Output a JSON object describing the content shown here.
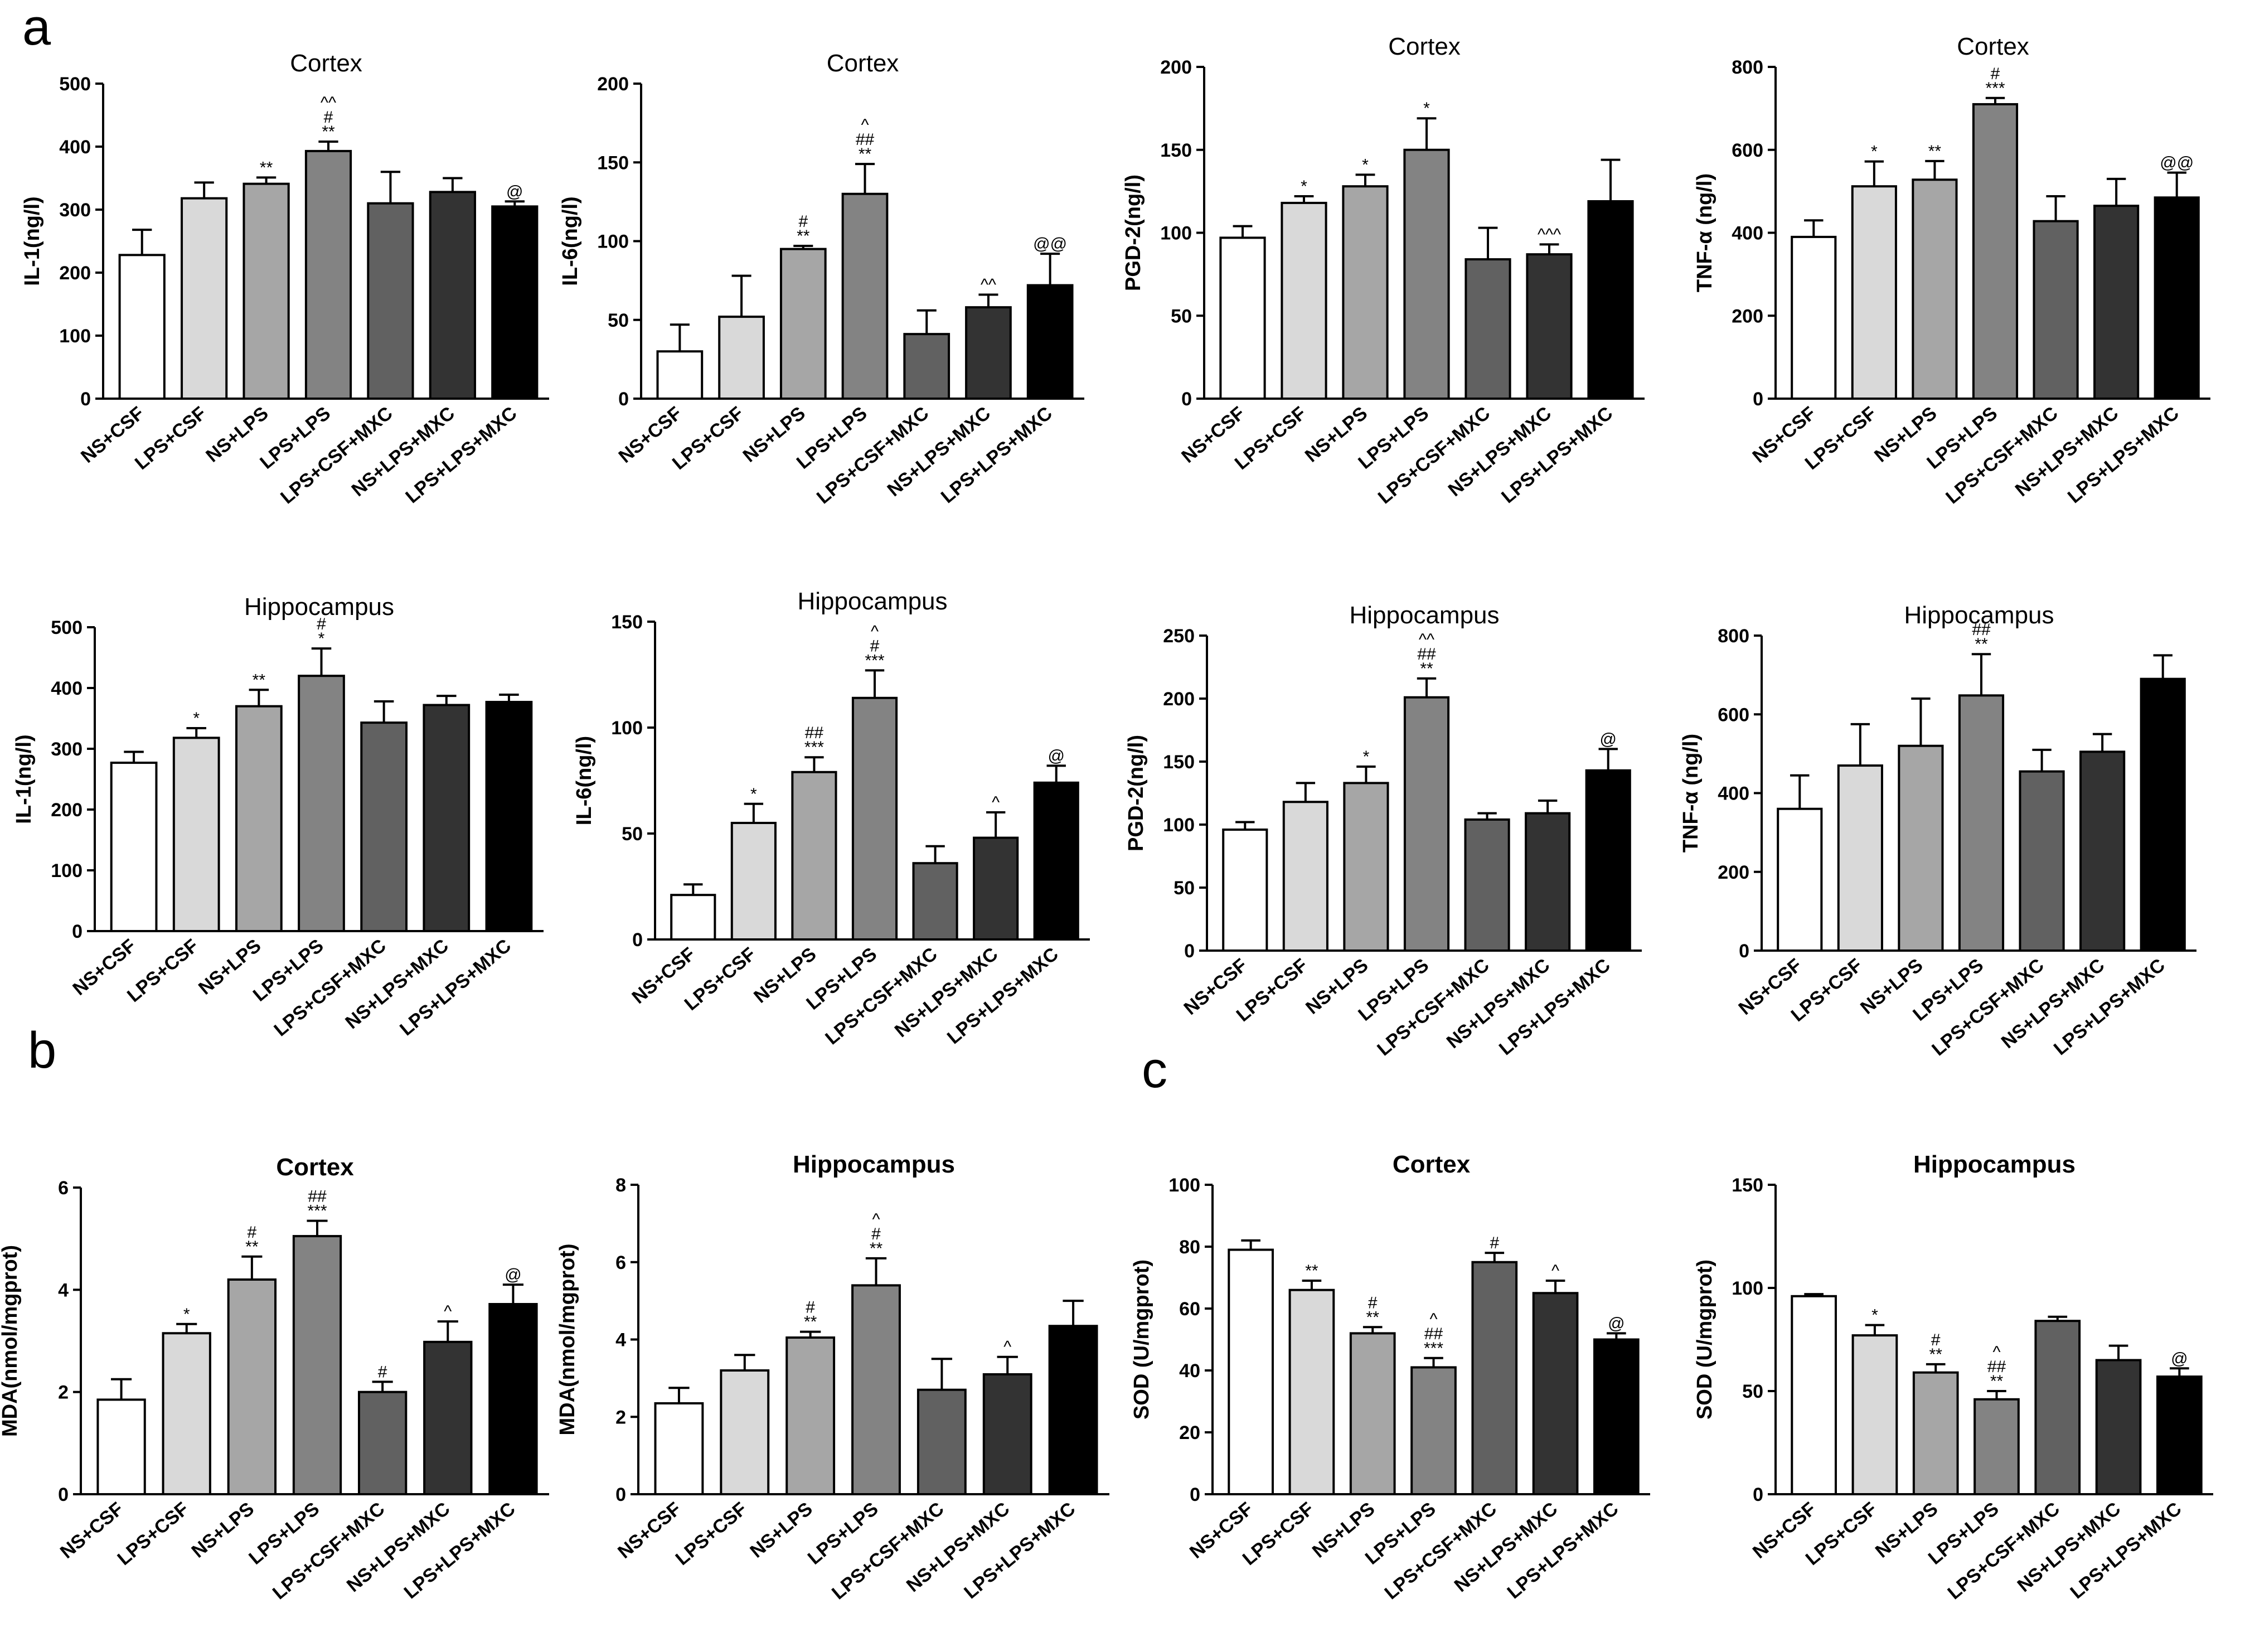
{
  "panel_labels": [
    "a",
    "b",
    "c"
  ],
  "colors": [
    "#ffffff",
    "#d9d9d9",
    "#a6a6a6",
    "#838383",
    "#616161",
    "#333333",
    "#000000"
  ],
  "chart_data": [
    {
      "type": "bar",
      "title": "Cortex",
      "ylabel": "IL-1(ng/l)",
      "ylim": [
        0,
        500
      ],
      "yticks": [
        0,
        100,
        200,
        300,
        400,
        500
      ],
      "categories": [
        "NS+CSF",
        "LPS+CSF",
        "NS+LPS",
        "LPS+LPS",
        "LPS+CSF+MXC",
        "NS+LPS+MXC",
        "LPS+LPS+MXC"
      ],
      "values": [
        228,
        318,
        341,
        393,
        310,
        328,
        305
      ],
      "errors": [
        40,
        25,
        10,
        15,
        50,
        22,
        8
      ],
      "annotations": [
        "",
        "",
        "**",
        "**|#|^^",
        "",
        "",
        "@"
      ]
    },
    {
      "type": "bar",
      "title": "Cortex",
      "ylabel": "IL-6(ng/l)",
      "ylim": [
        0,
        200
      ],
      "yticks": [
        0,
        50,
        100,
        150,
        200
      ],
      "categories": [
        "NS+CSF",
        "LPS+CSF",
        "NS+LPS",
        "LPS+LPS",
        "LPS+CSF+MXC",
        "NS+LPS+MXC",
        "LPS+LPS+MXC"
      ],
      "values": [
        30,
        52,
        95,
        130,
        41,
        58,
        72
      ],
      "errors": [
        17,
        26,
        2,
        19,
        15,
        8,
        20
      ],
      "annotations": [
        "",
        "",
        "**|#",
        "**|##|^",
        "",
        "^^",
        "@@"
      ]
    },
    {
      "type": "bar",
      "title": "Cortex",
      "ylabel": "PGD-2(ng/l)",
      "ylim": [
        0,
        200
      ],
      "yticks": [
        0,
        50,
        100,
        150,
        200
      ],
      "categories": [
        "NS+CSF",
        "LPS+CSF",
        "NS+LPS",
        "LPS+LPS",
        "LPS+CSF+MXC",
        "NS+LPS+MXC",
        "LPS+LPS+MXC"
      ],
      "values": [
        97,
        118,
        128,
        150,
        84,
        87,
        119
      ],
      "errors": [
        7,
        4,
        7,
        19,
        19,
        6,
        25
      ],
      "annotations": [
        "",
        "*",
        "*",
        "*",
        "",
        "^^^",
        ""
      ]
    },
    {
      "type": "bar",
      "title": "Cortex",
      "ylabel": "TNF-α (ng/l)",
      "ylim": [
        0,
        800
      ],
      "yticks": [
        0,
        200,
        400,
        600,
        800
      ],
      "categories": [
        "NS+CSF",
        "LPS+CSF",
        "NS+LPS",
        "LPS+LPS",
        "LPS+CSF+MXC",
        "NS+LPS+MXC",
        "LPS+LPS+MXC"
      ],
      "values": [
        390,
        512,
        528,
        710,
        428,
        465,
        485
      ],
      "errors": [
        40,
        60,
        45,
        15,
        60,
        65,
        60
      ],
      "annotations": [
        "",
        "*",
        "**",
        "***|#",
        "",
        "",
        "@@"
      ]
    },
    {
      "type": "bar",
      "title": "Hippocampus",
      "ylabel": "IL-1(ng/l)",
      "ylim": [
        0,
        500
      ],
      "yticks": [
        0,
        100,
        200,
        300,
        400,
        500
      ],
      "categories": [
        "NS+CSF",
        "LPS+CSF",
        "NS+LPS",
        "LPS+LPS",
        "LPS+CSF+MXC",
        "NS+LPS+MXC",
        "LPS+LPS+MXC"
      ],
      "values": [
        277,
        318,
        370,
        420,
        343,
        372,
        377
      ],
      "errors": [
        18,
        16,
        27,
        45,
        35,
        15,
        12
      ],
      "annotations": [
        "",
        "*",
        "**",
        "*|#",
        "",
        "",
        ""
      ]
    },
    {
      "type": "bar",
      "title": "Hippocampus",
      "ylabel": "IL-6(ng/l)",
      "ylim": [
        0,
        150
      ],
      "yticks": [
        0,
        50,
        100,
        150
      ],
      "categories": [
        "NS+CSF",
        "LPS+CSF",
        "NS+LPS",
        "LPS+LPS",
        "LPS+CSF+MXC",
        "NS+LPS+MXC",
        "LPS+LPS+MXC"
      ],
      "values": [
        21,
        55,
        79,
        114,
        36,
        48,
        74
      ],
      "errors": [
        5,
        9,
        7,
        13,
        8,
        12,
        8
      ],
      "annotations": [
        "",
        "*",
        "***|##",
        "***|#|^",
        "",
        "^",
        "@"
      ]
    },
    {
      "type": "bar",
      "title": "Hippocampus",
      "ylabel": "PGD-2(ng/l)",
      "ylim": [
        0,
        250
      ],
      "yticks": [
        0,
        50,
        100,
        150,
        200,
        250
      ],
      "categories": [
        "NS+CSF",
        "LPS+CSF",
        "NS+LPS",
        "LPS+LPS",
        "LPS+CSF+MXC",
        "NS+LPS+MXC",
        "LPS+LPS+MXC"
      ],
      "values": [
        96,
        118,
        133,
        201,
        104,
        109,
        143
      ],
      "errors": [
        6,
        15,
        13,
        15,
        5,
        10,
        17
      ],
      "annotations": [
        "",
        "",
        "*",
        "**|##|^^",
        "",
        "",
        "@"
      ]
    },
    {
      "type": "bar",
      "title": "Hippocampus",
      "ylabel": "TNF-α (ng/l)",
      "ylim": [
        0,
        800
      ],
      "yticks": [
        0,
        200,
        400,
        600,
        800
      ],
      "categories": [
        "NS+CSF",
        "LPS+CSF",
        "NS+LPS",
        "LPS+LPS",
        "LPS+CSF+MXC",
        "NS+LPS+MXC",
        "LPS+LPS+MXC"
      ],
      "values": [
        360,
        470,
        520,
        648,
        455,
        505,
        690
      ],
      "errors": [
        85,
        105,
        120,
        105,
        55,
        45,
        60
      ],
      "annotations": [
        "",
        "",
        "",
        "**|##",
        "",
        "",
        ""
      ]
    },
    {
      "type": "bar",
      "title": "Cortex",
      "ylabel": "MDA(nmol/mgprot)",
      "ylim": [
        0,
        6
      ],
      "yticks": [
        0,
        2,
        4,
        6
      ],
      "categories": [
        "NS+CSF",
        "LPS+CSF",
        "NS+LPS",
        "LPS+LPS",
        "LPS+CSF+MXC",
        "NS+LPS+MXC",
        "LPS+LPS+MXC"
      ],
      "values": [
        1.85,
        3.15,
        4.2,
        5.05,
        2.0,
        2.98,
        3.72
      ],
      "errors": [
        0.4,
        0.18,
        0.45,
        0.3,
        0.2,
        0.4,
        0.38
      ],
      "annotations": [
        "",
        "*",
        "**|#",
        "***|##",
        "#",
        "^",
        "@"
      ]
    },
    {
      "type": "bar",
      "title": "Hippocampus",
      "ylabel": "MDA(nmol/mgprot)",
      "ylim": [
        0,
        8
      ],
      "yticks": [
        0,
        2,
        4,
        6,
        8
      ],
      "categories": [
        "NS+CSF",
        "LPS+CSF",
        "NS+LPS",
        "LPS+LPS",
        "LPS+CSF+MXC",
        "NS+LPS+MXC",
        "LPS+LPS+MXC"
      ],
      "values": [
        2.35,
        3.2,
        4.05,
        5.4,
        2.7,
        3.1,
        4.35
      ],
      "errors": [
        0.4,
        0.4,
        0.15,
        0.7,
        0.8,
        0.45,
        0.65
      ],
      "annotations": [
        "",
        "",
        "**|#",
        "**|#|^",
        "",
        "^",
        ""
      ]
    },
    {
      "type": "bar",
      "title": "Cortex",
      "ylabel": "SOD (U/mgprot)",
      "ylim": [
        0,
        100
      ],
      "yticks": [
        0,
        20,
        40,
        60,
        80,
        100
      ],
      "categories": [
        "NS+CSF",
        "LPS+CSF",
        "NS+LPS",
        "LPS+LPS",
        "LPS+CSF+MXC",
        "NS+LPS+MXC",
        "LPS+LPS+MXC"
      ],
      "values": [
        79,
        66,
        52,
        41,
        75,
        65,
        50
      ],
      "errors": [
        3,
        3,
        2,
        3,
        3,
        4,
        2
      ],
      "annotations": [
        "",
        "**",
        "**|#",
        "***|##|^",
        "#",
        "^",
        "@"
      ]
    },
    {
      "type": "bar",
      "title": "Hippocampus",
      "ylabel": "SOD (U/mgprot)",
      "ylim": [
        0,
        150
      ],
      "yticks": [
        0,
        50,
        100,
        150
      ],
      "categories": [
        "NS+CSF",
        "LPS+CSF",
        "NS+LPS",
        "LPS+LPS",
        "LPS+CSF+MXC",
        "NS+LPS+MXC",
        "LPS+LPS+MXC"
      ],
      "values": [
        96,
        77,
        59,
        46,
        84,
        65,
        57
      ],
      "errors": [
        1,
        5,
        4,
        4,
        2,
        7,
        4
      ],
      "annotations": [
        "",
        "*",
        "**|#",
        "**|##|^",
        "",
        "",
        "@"
      ]
    }
  ]
}
